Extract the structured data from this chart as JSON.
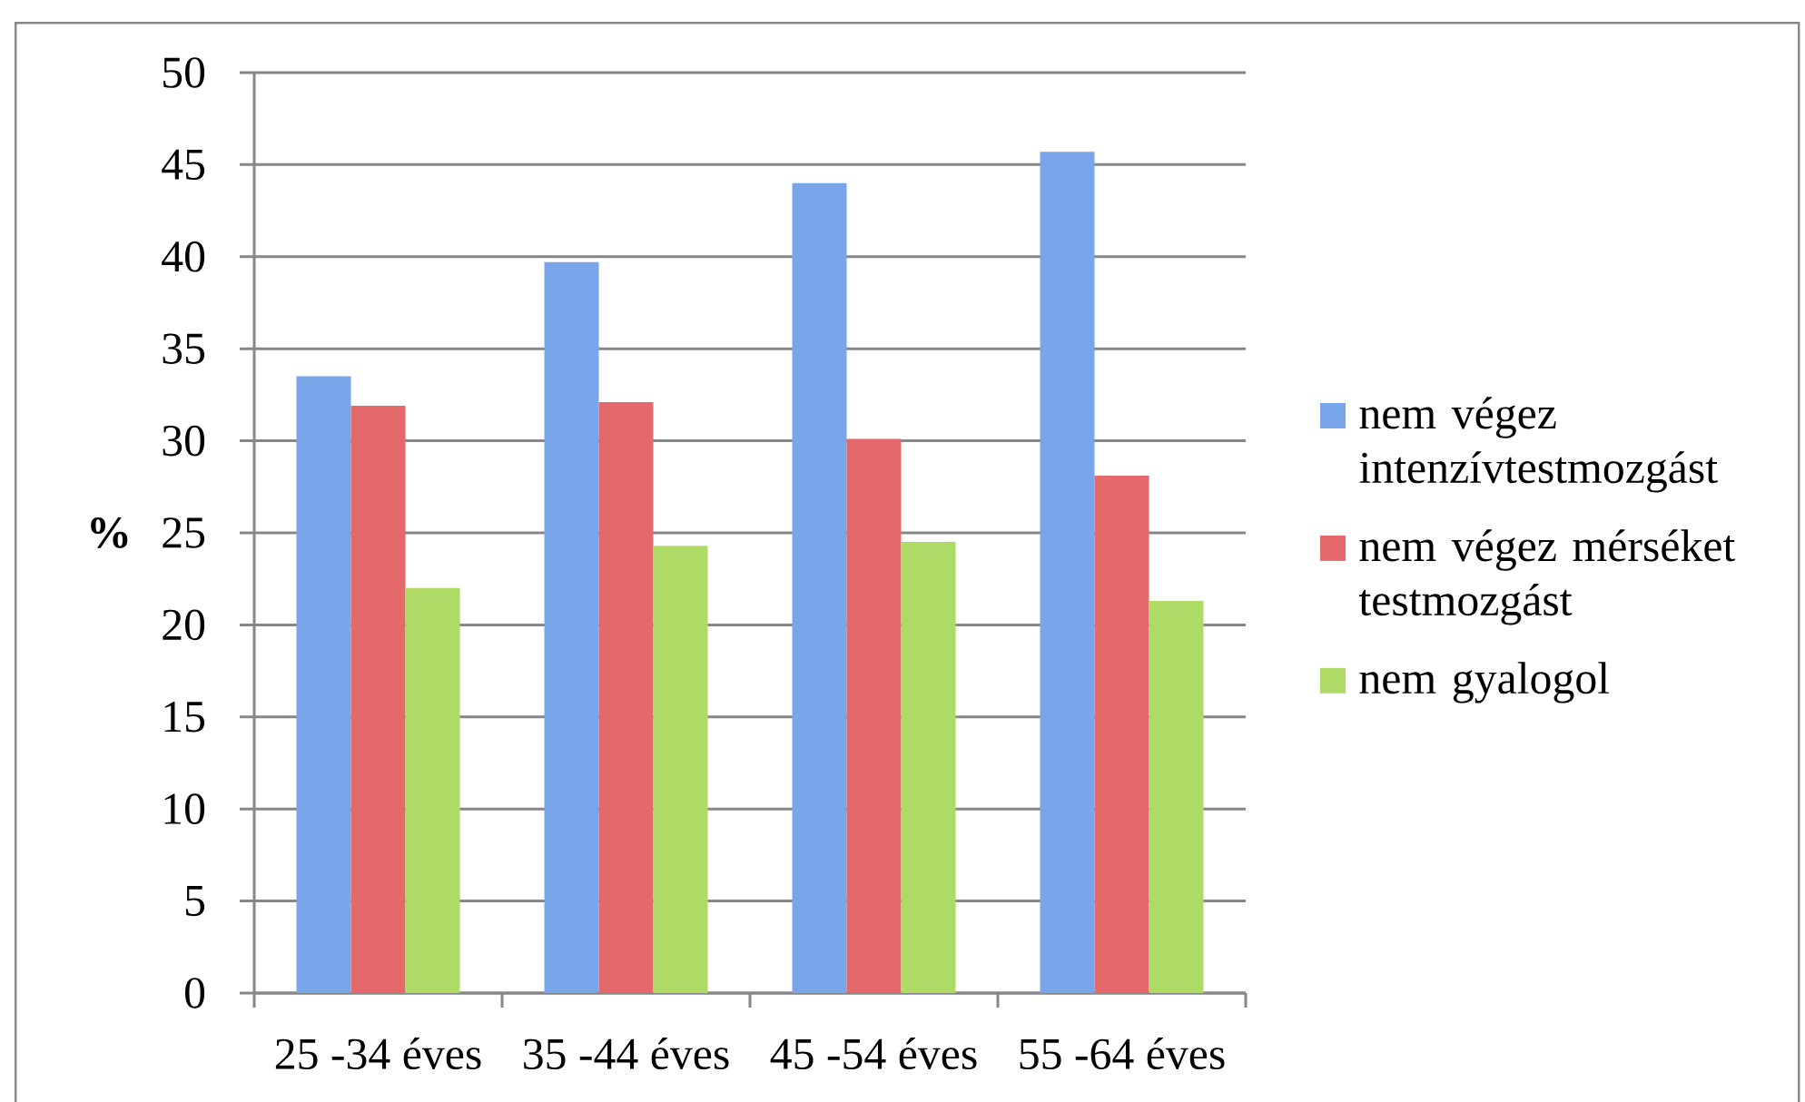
{
  "chart_data": {
    "type": "bar",
    "ylabel": "%",
    "categories": [
      "25 -34 éves",
      "35 -44 éves",
      "45 -54 éves",
      "55 -64 éves"
    ],
    "series": [
      {
        "name": "nem végez intenzívtestmozgást",
        "color": "#79a5ea",
        "values": [
          33.5,
          39.7,
          44.0,
          45.7
        ]
      },
      {
        "name": "nem végez mérséket testmozgást",
        "color": "#e5696a",
        "values": [
          31.9,
          32.1,
          30.1,
          28.1
        ]
      },
      {
        "name": "nem gyalogol",
        "color": "#addb66",
        "values": [
          22.0,
          24.3,
          24.5,
          21.3
        ]
      }
    ],
    "ylim": [
      0,
      50
    ],
    "yticks": [
      0,
      5,
      10,
      15,
      20,
      25,
      30,
      35,
      40,
      45,
      50
    ],
    "grid": "y",
    "legend": "right"
  }
}
